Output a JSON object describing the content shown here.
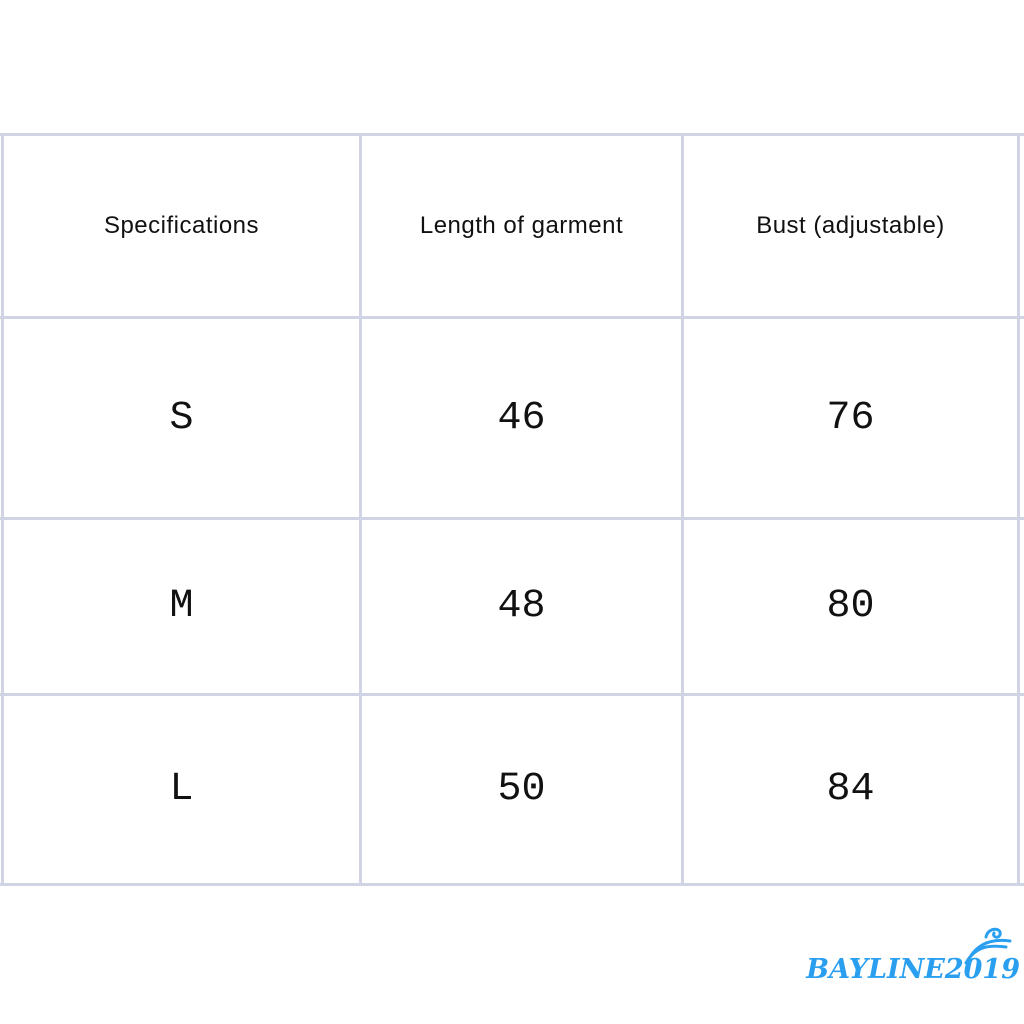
{
  "table": {
    "headers": [
      "Specifications",
      "Length of garment",
      "Bust (adjustable)"
    ],
    "rows": [
      [
        "S",
        "46",
        "76"
      ],
      [
        "M",
        "48",
        "80"
      ],
      [
        "L",
        "50",
        "84"
      ]
    ]
  },
  "logo": {
    "text": "BAYLINE2019",
    "color": "#2a9ff0"
  },
  "colors": {
    "grid": "#d0d4e4"
  }
}
